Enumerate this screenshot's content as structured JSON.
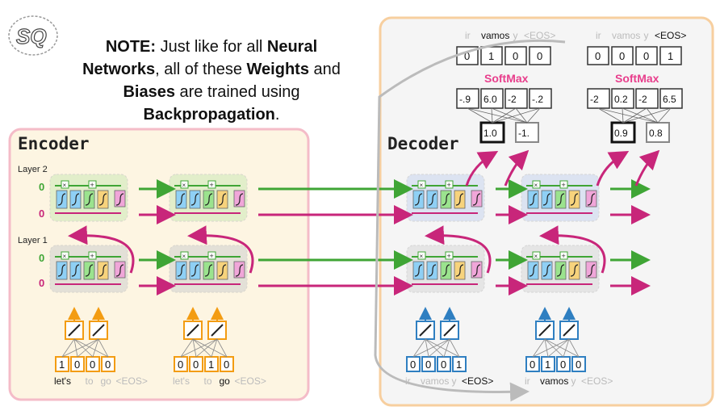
{
  "note": {
    "p1": "NOTE:",
    "p2": " Just like for all ",
    "p3": "Neural",
    "p4": "Networks",
    "p5": ", all of these ",
    "p6": "Weights",
    "p7": " and",
    "p8": "Biases",
    "p9": " are trained using",
    "p10": "Backpropagation",
    "p11": "."
  },
  "logo_text": "SQ",
  "encoder": {
    "title": "Encoder",
    "layer2_label": "Layer 2",
    "layer1_label": "Layer 1",
    "init_values": [
      "0",
      "0",
      "0",
      "0"
    ],
    "inputs": [
      {
        "one_hot": [
          "1",
          "0",
          "0",
          "0"
        ],
        "words": [
          "let's",
          "to",
          "go",
          "<EOS>"
        ],
        "active": 0
      },
      {
        "one_hot": [
          "0",
          "0",
          "1",
          "0"
        ],
        "words": [
          "let's",
          "to",
          "go",
          "<EOS>"
        ],
        "active": 2
      }
    ]
  },
  "decoder": {
    "title": "Decoder",
    "inputs": [
      {
        "one_hot": [
          "0",
          "0",
          "0",
          "1"
        ],
        "words": [
          "ir",
          "vamos",
          "y",
          "<EOS>"
        ],
        "active": 3
      },
      {
        "one_hot": [
          "0",
          "1",
          "0",
          "0"
        ],
        "words": [
          "ir",
          "vamos",
          "y",
          "<EOS>"
        ],
        "active": 1
      }
    ],
    "outputs": [
      {
        "words": [
          "ir",
          "vamos",
          "y",
          "<EOS>"
        ],
        "active": 1,
        "one_hot": [
          "0",
          "1",
          "0",
          "0"
        ],
        "softmax_label": "SoftMax",
        "logits": [
          "-.9",
          "6.0",
          "-2",
          "-.2"
        ],
        "fc": [
          "1.0",
          "-1."
        ]
      },
      {
        "words": [
          "ir",
          "vamos",
          "y",
          "<EOS>"
        ],
        "active": 3,
        "one_hot": [
          "0",
          "0",
          "0",
          "1"
        ],
        "softmax_label": "SoftMax",
        "logits": [
          "-2",
          "0.2",
          "-2",
          "6.5"
        ],
        "fc": [
          "0.9",
          "0.8"
        ]
      }
    ]
  },
  "colors": {
    "encoder_bg": "#fdf5e2",
    "encoder_border": "#f4bcc8",
    "decoder_bg": "#f4f4f4",
    "decoder_border": "#f7cf9f",
    "green_arrow": "#3fa535",
    "pink_arrow": "#c8267a",
    "encoder_embed": "#f39c12",
    "decoder_embed": "#2f7fc1",
    "softmax": "#e83e8c"
  }
}
